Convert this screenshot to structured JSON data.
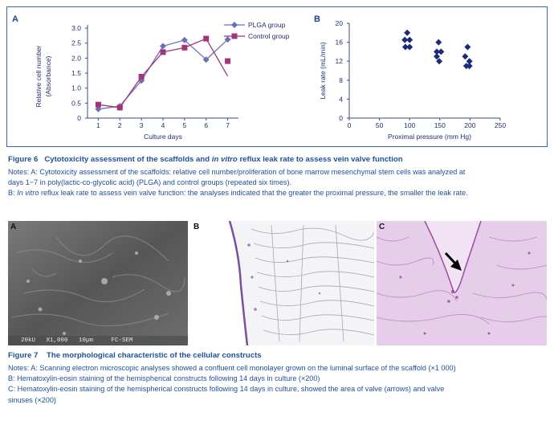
{
  "figure6": {
    "title_prefix": "Figure 6",
    "title_part1": "Cytotoxicity assessment of the scaffolds and ",
    "title_italic": "in vitro",
    "title_part2": " reflux leak rate to assess vein valve function",
    "notes_line1": "Notes: A: Cytotoxicity assessment of the scaffolds: relative cell number/proliferation of bone marrow mesenchymal stem cells was analyzed at",
    "notes_line2": "days 1−7 in poly(lactic-co-glycolic acid) (PLGA) and control groups (repeated six times).",
    "notes_b_prefix": "B: ",
    "notes_b_italic": "In vitro",
    "notes_b_rest": " reflux leak rate to assess vein valve function: the analyses indicated that the greater the proximal pressure, the smaller the leak rate."
  },
  "chart_data": [
    {
      "type": "line",
      "panel_label": "A",
      "xlabel": "Culture days",
      "ylabel": "Relative cell number (Absorbance)",
      "ylabel_line1": "Relative cell number",
      "ylabel_line2": "(Absorbance)",
      "x": [
        1,
        2,
        3,
        4,
        5,
        6,
        7
      ],
      "x_ticks": [
        "1",
        "2",
        "3",
        "4",
        "5",
        "6",
        "7"
      ],
      "y_ticks": [
        "0",
        "0.5",
        "1.0",
        "1.5",
        "2.0",
        "2.5",
        "3.0"
      ],
      "ylim": [
        0,
        3.0
      ],
      "legend_position": "top-right",
      "series": [
        {
          "name": "PLGA group",
          "marker": "diamond",
          "color": "#6a6fb8",
          "values": [
            0.3,
            0.4,
            1.25,
            2.4,
            2.6,
            1.95,
            2.62
          ]
        },
        {
          "name": "Control group",
          "marker": "square",
          "color": "#a3347a",
          "values": [
            0.45,
            0.35,
            1.38,
            2.2,
            2.35,
            2.65,
            1.9
          ],
          "line_end": 1.4
        }
      ]
    },
    {
      "type": "scatter",
      "panel_label": "B",
      "xlabel": "Proximal pressure (mm Hg)",
      "ylabel": "Leak rate (mL/min)",
      "x_ticks": [
        "0",
        "50",
        "100",
        "150",
        "200",
        "250"
      ],
      "y_ticks": [
        "0",
        "4",
        "8",
        "12",
        "16",
        "20"
      ],
      "xlim": [
        0,
        250
      ],
      "ylim": [
        0,
        20
      ],
      "color": "#1c2a7a",
      "points": [
        {
          "x": 96,
          "y": 18
        },
        {
          "x": 92,
          "y": 16.5
        },
        {
          "x": 100,
          "y": 16.5
        },
        {
          "x": 93,
          "y": 15
        },
        {
          "x": 100,
          "y": 15
        },
        {
          "x": 148,
          "y": 16
        },
        {
          "x": 145,
          "y": 14
        },
        {
          "x": 152,
          "y": 14
        },
        {
          "x": 145,
          "y": 13
        },
        {
          "x": 149,
          "y": 12
        },
        {
          "x": 196,
          "y": 15
        },
        {
          "x": 192,
          "y": 13
        },
        {
          "x": 199,
          "y": 12
        },
        {
          "x": 194,
          "y": 11
        },
        {
          "x": 199,
          "y": 11
        }
      ]
    }
  ],
  "photos": {
    "a_label": "A",
    "b_label": "B",
    "c_label": "C",
    "sem_text": "20kU   X1,000   10µm     FC-SEM"
  },
  "figure7": {
    "title": "Figure 7    The morphological characteristic of the cellular constructs",
    "note_a": "Notes: A: Scanning electron microscopic analyses showed a confluent cell monolayer grown on the luminal surface of the scaffold (×1 000)",
    "note_b": "B: Hematoxylin-eosin staining of the hemispherical constructs following 14 days in culture (×200)",
    "note_c1": "C: Hematoxylin-eosin staining of the hemispherical constructs following 14 days in culture, showed the area of valve (arrows) and valve",
    "note_c2": "sinuses (×200)"
  }
}
